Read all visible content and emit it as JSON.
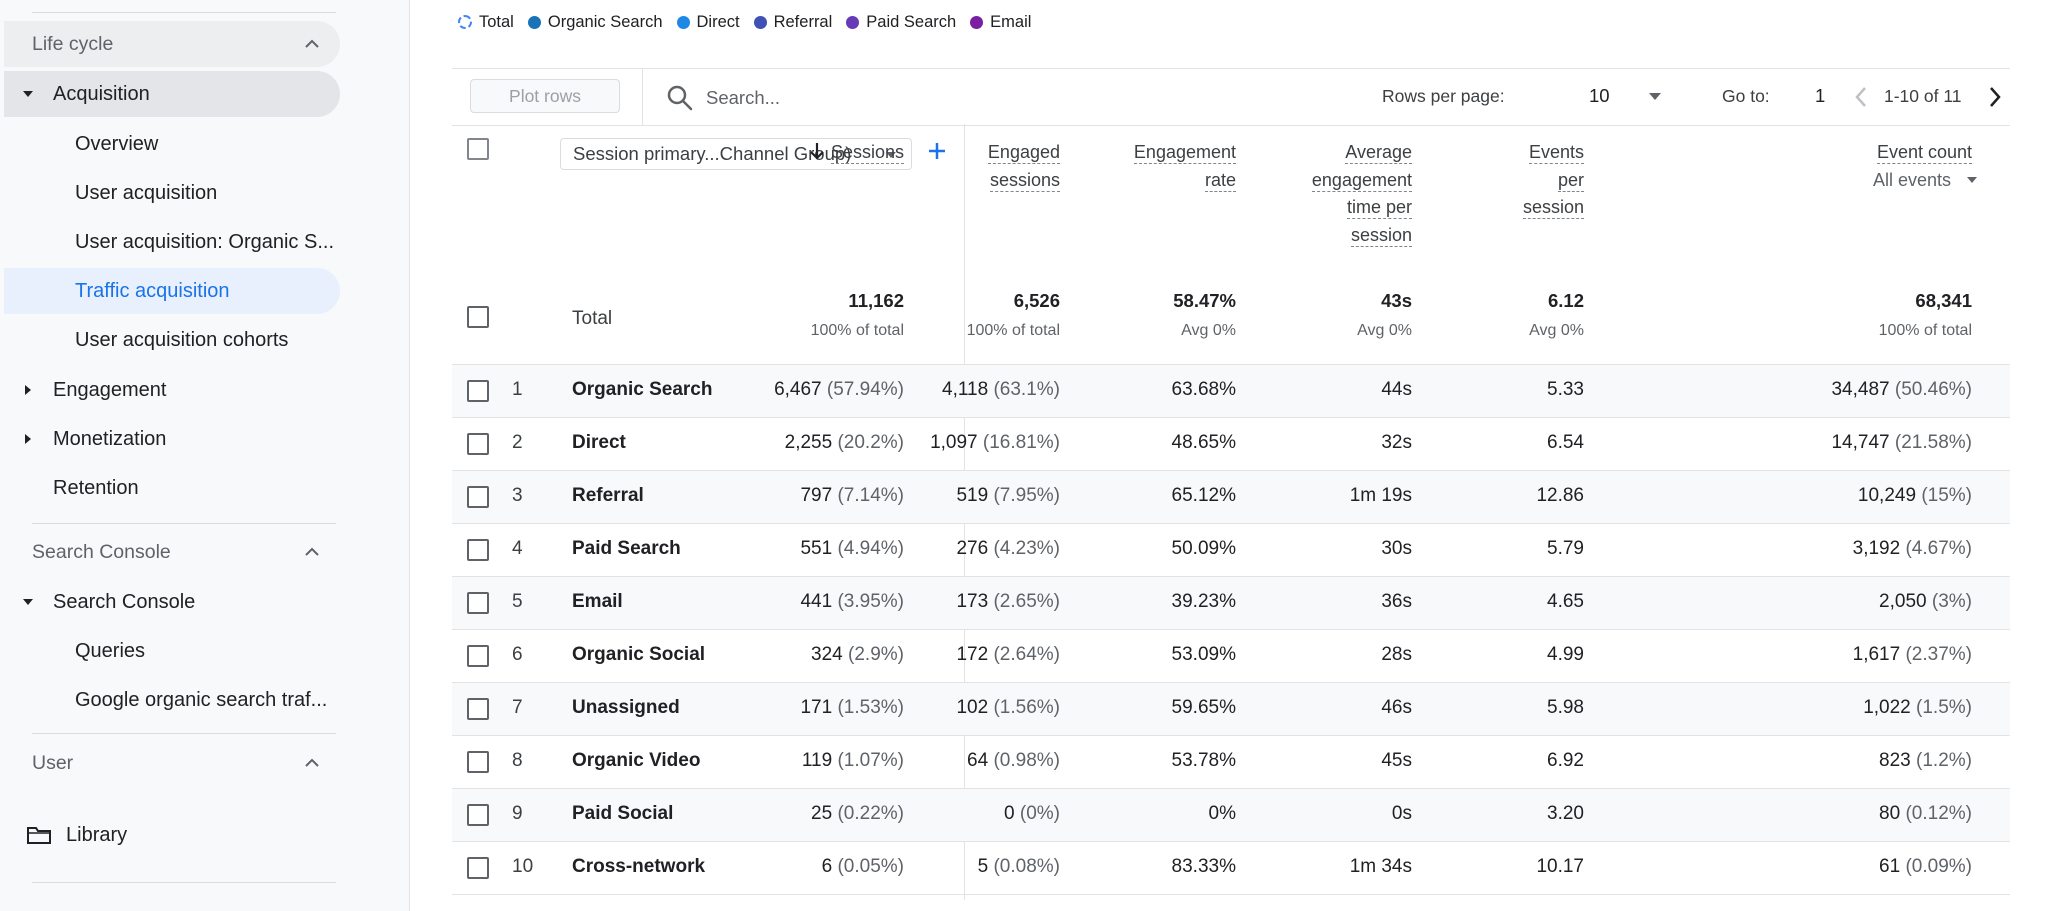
{
  "sidebar": {
    "life_cycle": "Life cycle",
    "acquisition": "Acquisition",
    "acq_items": [
      "Overview",
      "User acquisition",
      "User acquisition: Organic S...",
      "Traffic acquisition",
      "User acquisition cohorts"
    ],
    "engagement": "Engagement",
    "monetization": "Monetization",
    "retention": "Retention",
    "search_console_section": "Search Console",
    "search_console_group": "Search Console",
    "sc_items": [
      "Queries",
      "Google organic search traf..."
    ],
    "user_section": "User",
    "library": "Library"
  },
  "legend": [
    {
      "label": "Total",
      "color": "#4285f4",
      "style": "dashed"
    },
    {
      "label": "Organic Search",
      "color": "#1a73b8"
    },
    {
      "label": "Direct",
      "color": "#1e88e5"
    },
    {
      "label": "Referral",
      "color": "#3f51b5"
    },
    {
      "label": "Paid Search",
      "color": "#673ab7"
    },
    {
      "label": "Email",
      "color": "#7b1fa2"
    }
  ],
  "toolbar": {
    "plot_rows": "Plot rows",
    "search_placeholder": "Search...",
    "rows_per_page_label": "Rows per page:",
    "rows_per_page_value": "10",
    "goto_label": "Go to:",
    "goto_value": "1",
    "page_range": "1-10 of 11"
  },
  "table": {
    "dimension": "Session primary...Channel Group)",
    "headers": {
      "sessions": [
        "Sessions"
      ],
      "engaged": [
        "Engaged",
        "sessions"
      ],
      "rate": [
        "Engagement",
        "rate"
      ],
      "avg_time": [
        "Average",
        "engagement",
        "time per",
        "session"
      ],
      "events_per": [
        "Events",
        "per",
        "session"
      ],
      "event_count": [
        "Event count"
      ],
      "event_filter": "All events"
    },
    "total": {
      "label": "Total",
      "sessions": "11,162",
      "sessions_sub": "100% of total",
      "engaged": "6,526",
      "engaged_sub": "100% of total",
      "rate": "58.47%",
      "rate_sub": "Avg 0%",
      "avg_time": "43s",
      "avg_time_sub": "Avg 0%",
      "events_per": "6.12",
      "events_per_sub": "Avg 0%",
      "event_count": "68,341",
      "event_count_sub": "100% of total"
    },
    "rows": [
      {
        "idx": "1",
        "name": "Organic Search",
        "sessions": "6,467",
        "sessions_pct": "(57.94%)",
        "engaged": "4,118",
        "engaged_pct": "(63.1%)",
        "rate": "63.68%",
        "avg_time": "44s",
        "events_per": "5.33",
        "event_count": "34,487",
        "event_count_pct": "(50.46%)"
      },
      {
        "idx": "2",
        "name": "Direct",
        "sessions": "2,255",
        "sessions_pct": "(20.2%)",
        "engaged": "1,097",
        "engaged_pct": "(16.81%)",
        "rate": "48.65%",
        "avg_time": "32s",
        "events_per": "6.54",
        "event_count": "14,747",
        "event_count_pct": "(21.58%)"
      },
      {
        "idx": "3",
        "name": "Referral",
        "sessions": "797",
        "sessions_pct": "(7.14%)",
        "engaged": "519",
        "engaged_pct": "(7.95%)",
        "rate": "65.12%",
        "avg_time": "1m 19s",
        "events_per": "12.86",
        "event_count": "10,249",
        "event_count_pct": "(15%)"
      },
      {
        "idx": "4",
        "name": "Paid Search",
        "sessions": "551",
        "sessions_pct": "(4.94%)",
        "engaged": "276",
        "engaged_pct": "(4.23%)",
        "rate": "50.09%",
        "avg_time": "30s",
        "events_per": "5.79",
        "event_count": "3,192",
        "event_count_pct": "(4.67%)"
      },
      {
        "idx": "5",
        "name": "Email",
        "sessions": "441",
        "sessions_pct": "(3.95%)",
        "engaged": "173",
        "engaged_pct": "(2.65%)",
        "rate": "39.23%",
        "avg_time": "36s",
        "events_per": "4.65",
        "event_count": "2,050",
        "event_count_pct": "(3%)"
      },
      {
        "idx": "6",
        "name": "Organic Social",
        "sessions": "324",
        "sessions_pct": "(2.9%)",
        "engaged": "172",
        "engaged_pct": "(2.64%)",
        "rate": "53.09%",
        "avg_time": "28s",
        "events_per": "4.99",
        "event_count": "1,617",
        "event_count_pct": "(2.37%)"
      },
      {
        "idx": "7",
        "name": "Unassigned",
        "sessions": "171",
        "sessions_pct": "(1.53%)",
        "engaged": "102",
        "engaged_pct": "(1.56%)",
        "rate": "59.65%",
        "avg_time": "46s",
        "events_per": "5.98",
        "event_count": "1,022",
        "event_count_pct": "(1.5%)"
      },
      {
        "idx": "8",
        "name": "Organic Video",
        "sessions": "119",
        "sessions_pct": "(1.07%)",
        "engaged": "64",
        "engaged_pct": "(0.98%)",
        "rate": "53.78%",
        "avg_time": "45s",
        "events_per": "6.92",
        "event_count": "823",
        "event_count_pct": "(1.2%)"
      },
      {
        "idx": "9",
        "name": "Paid Social",
        "sessions": "25",
        "sessions_pct": "(0.22%)",
        "engaged": "0",
        "engaged_pct": "(0%)",
        "rate": "0%",
        "avg_time": "0s",
        "events_per": "3.20",
        "event_count": "80",
        "event_count_pct": "(0.12%)"
      },
      {
        "idx": "10",
        "name": "Cross-network",
        "sessions": "6",
        "sessions_pct": "(0.05%)",
        "engaged": "5",
        "engaged_pct": "(0.08%)",
        "rate": "83.33%",
        "avg_time": "1m 34s",
        "events_per": "10.17",
        "event_count": "61",
        "event_count_pct": "(0.09%)"
      }
    ]
  }
}
